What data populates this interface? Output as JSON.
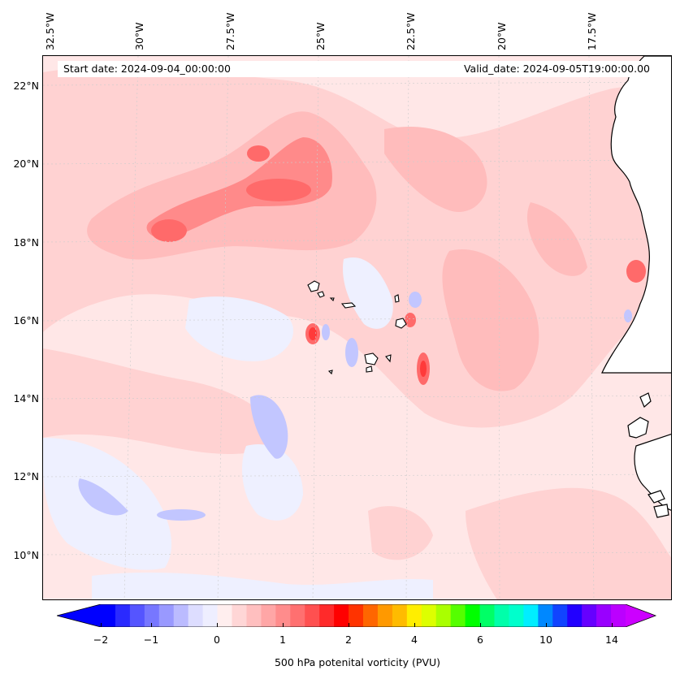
{
  "header": {
    "start_date": "Start date: 2024-09-04_00:00:00",
    "valid_date": "Valid_date: 2024-09-05T19:00:00.00"
  },
  "axes": {
    "lon_labels": [
      "32.5°W",
      "30°W",
      "27.5°W",
      "25°W",
      "22.5°W",
      "20°W",
      "17.5°W"
    ],
    "lat_labels": [
      "22°N",
      "20°N",
      "18°N",
      "16°N",
      "14°N",
      "12°N",
      "10°N"
    ]
  },
  "colorbar": {
    "label": "500 hPa potenital vorticity (PVU)",
    "ticks": [
      "−2",
      "−1",
      "0",
      "1",
      "2",
      "4",
      "6",
      "10",
      "14"
    ],
    "colors": [
      "#0000ff",
      "#2a2aff",
      "#5555ff",
      "#7777ff",
      "#9999ff",
      "#bbbbff",
      "#ddddff",
      "#eeeeff",
      "#ffeeee",
      "#ffd6d6",
      "#ffbfbf",
      "#ffa6a6",
      "#ff8c8c",
      "#ff7070",
      "#ff5050",
      "#ff2a2a",
      "#ff0000",
      "#ff3300",
      "#ff6600",
      "#ff9900",
      "#ffbb00",
      "#ffee00",
      "#ddff00",
      "#aaff00",
      "#55ff00",
      "#00ff00",
      "#00ff66",
      "#00ffaa",
      "#00ffcc",
      "#00eeff",
      "#0088ff",
      "#1144ff",
      "#2200ff",
      "#6600ff",
      "#9900ff",
      "#bb00ff"
    ],
    "under_color": "#0000ff",
    "over_color": "#cc00ff"
  },
  "colors": {
    "background_pink": "#ffe7e7",
    "light_pink": "#ffd2d2",
    "mid_pink": "#ffbcbc",
    "strong_red": "#ff7f7f",
    "light_blue": "#eef0ff",
    "mid_blue": "#c9ccff",
    "coast": "#000000"
  }
}
